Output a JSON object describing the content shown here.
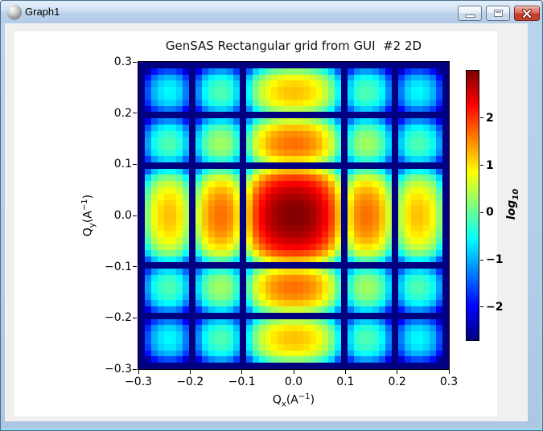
{
  "window": {
    "title": "Graph1",
    "icons": {
      "app": "sphere-icon",
      "minimize": "minimize-icon",
      "maximize": "restore-icon",
      "close": "close-icon"
    }
  },
  "chart_data": {
    "type": "heatmap",
    "title": "GenSAS Rectangular grid from GUI  #2 2D",
    "xlabel": "Qx(A^-1)",
    "ylabel": "Qy(A^-1)",
    "xlabel_parts": {
      "base": "Q",
      "sub": "x",
      "mid": "(A",
      "sup": "−1",
      "end": ")"
    },
    "ylabel_parts": {
      "base": "Q",
      "sub": "y",
      "mid": "(A",
      "sup": "−1",
      "end": ")"
    },
    "xlim": [
      -0.3,
      0.3
    ],
    "ylim": [
      -0.3,
      0.3
    ],
    "x_tick_labels": [
      "−0.3",
      "−0.2",
      "−0.1",
      "0.0",
      "0.1",
      "0.2",
      "0.3"
    ],
    "y_tick_labels": [
      "0.3",
      "0.2",
      "0.1",
      "0.0",
      "−0.1",
      "−0.2",
      "−0.3"
    ],
    "grid": false,
    "colormap": "jet",
    "colorbar": {
      "label": "log10",
      "label_parts": {
        "base": "log",
        "sub": "10"
      },
      "tick_values": [
        2,
        1,
        0,
        -1,
        -2
      ],
      "tick_labels": [
        "2",
        "1",
        "0",
        "−1",
        "−2"
      ],
      "vmin": -2.7,
      "vmax": 3.0,
      "position": "right"
    },
    "model": {
      "description": "log10 intensity of rectangular-grid form factor: v(qx,qy) = peak + log10(sinc^2(pi*qx/first_zero) * sinc^2(pi*qy/first_zero)), clipped to [vmin, vmax]; nulls every 0.1 A^-1, central lobe peak at origin",
      "peak": 3.0,
      "first_zero": 0.1,
      "grid_points": 49
    }
  }
}
